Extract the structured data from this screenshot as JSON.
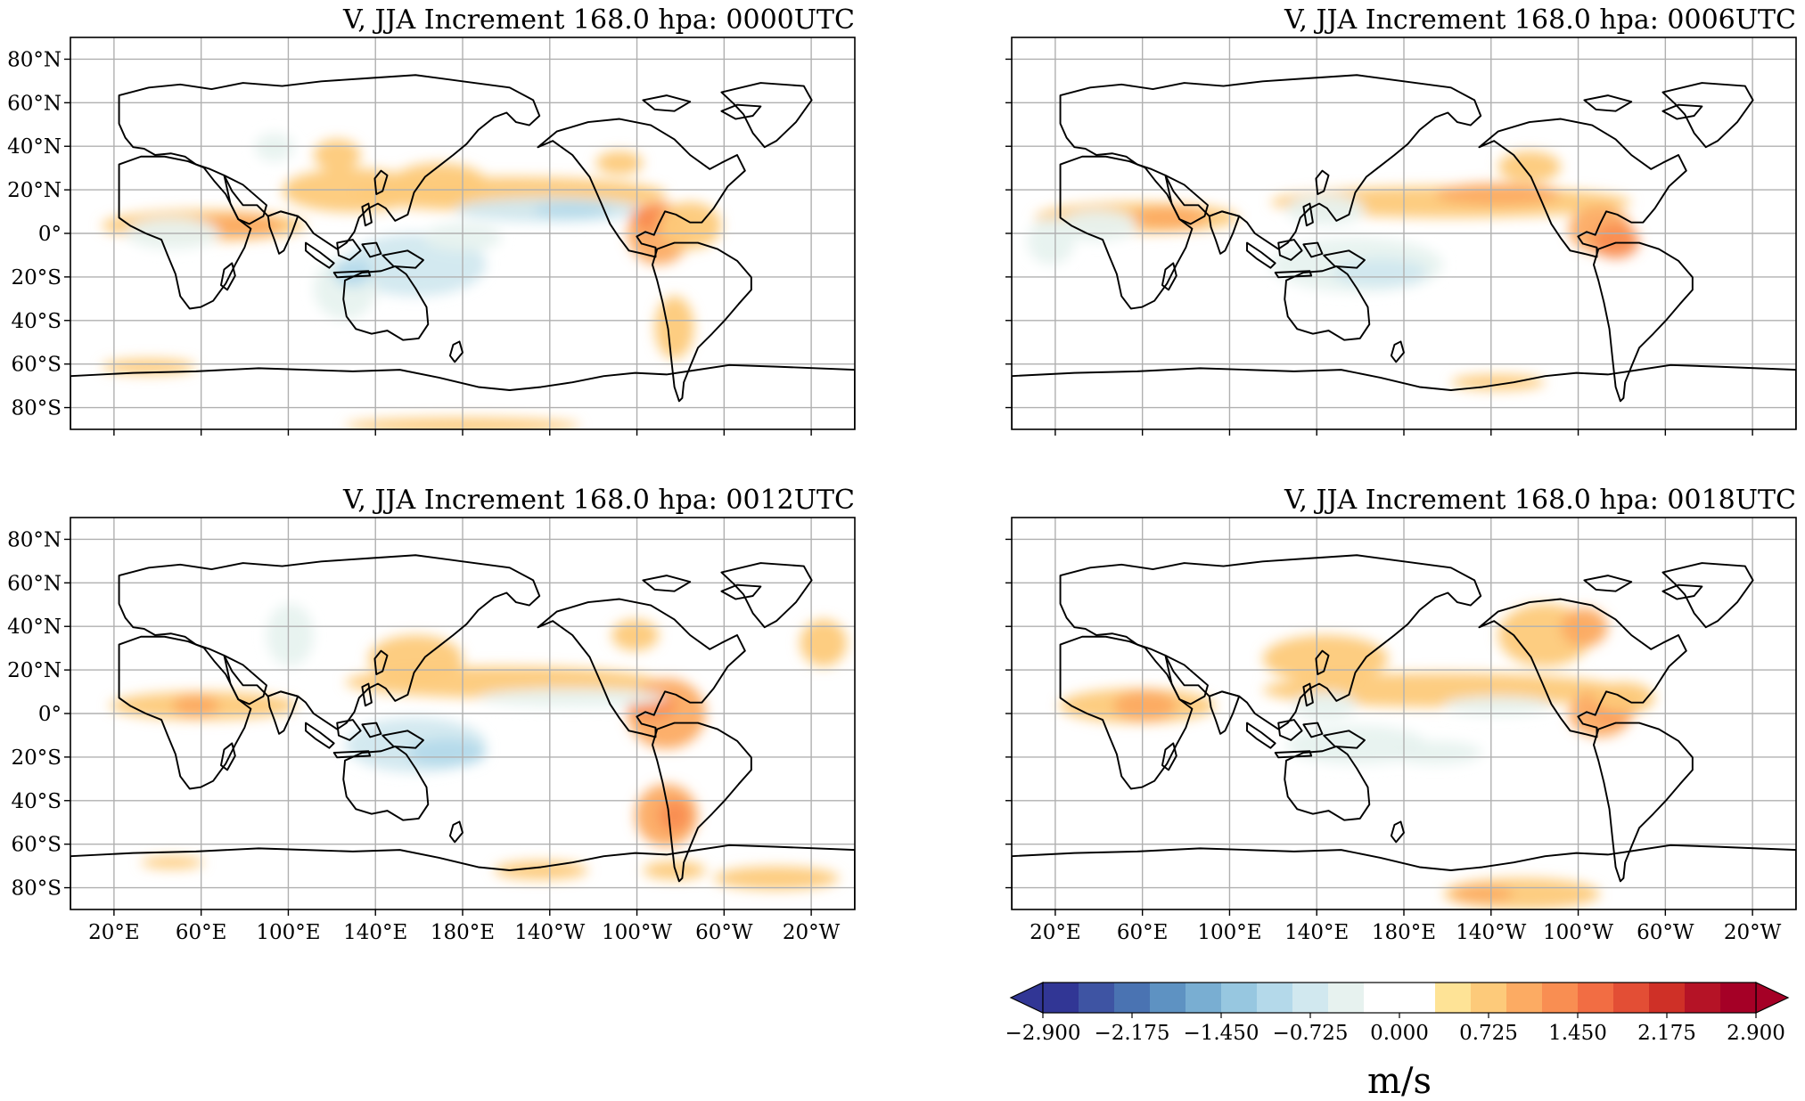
{
  "figure": {
    "panels": [
      {
        "title": "V, JJA Increment 168.0 hpa: 0000UTC"
      },
      {
        "title": "V, JJA Increment 168.0 hpa: 0006UTC"
      },
      {
        "title": "V, JJA Increment 168.0 hpa: 0012UTC"
      },
      {
        "title": "V, JJA Increment 168.0 hpa: 0018UTC"
      }
    ],
    "lat_ticks": [
      "80°N",
      "60°N",
      "40°N",
      "20°N",
      "0°",
      "20°S",
      "40°S",
      "60°S",
      "80°S"
    ],
    "lon_ticks": [
      "20°E",
      "60°E",
      "100°E",
      "140°E",
      "180°E",
      "140°W",
      "100°W",
      "60°W",
      "20°W"
    ],
    "colorbar": {
      "label": "m/s",
      "tick_labels": [
        "−2.900",
        "−2.175",
        "−1.450",
        "−0.725",
        "0.000",
        "0.725",
        "1.450",
        "2.175",
        "2.900"
      ],
      "colors": [
        "#313695",
        "#3e54a3",
        "#4a73b2",
        "#5e92c2",
        "#79aed2",
        "#97c7e0",
        "#b4d9ea",
        "#d1e8ef",
        "#e7f2ef",
        "#ffffff",
        "#ffffff",
        "#fee396",
        "#fdca7a",
        "#fcab63",
        "#f98e52",
        "#f26d43",
        "#e34e35",
        "#cf3027",
        "#b51326",
        "#a50026"
      ]
    }
  },
  "chart_data": [
    {
      "type": "heatmap",
      "title": "V, JJA Increment 168.0 hpa: 0000UTC",
      "variable": "V",
      "units": "m/s",
      "pressure_hpa": 168.0,
      "season": "JJA",
      "time": "0000UTC",
      "xlim": [
        0,
        360
      ],
      "ylim": [
        -90,
        90
      ],
      "central_longitude": 180,
      "features": [
        {
          "name": "tropical north Pacific band",
          "sign": "positive",
          "approx_max": 1.2
        },
        {
          "name": "equatorial east Pacific",
          "sign": "negative",
          "approx_min": -0.9
        },
        {
          "name": "Maritime Continent / north Australia",
          "sign": "negative",
          "approx_min": -1.8
        },
        {
          "name": "Indian Ocean equatorial",
          "sign": "positive",
          "approx_max": 1.0
        },
        {
          "name": "northern South America",
          "sign": "positive",
          "approx_max": 1.3
        }
      ]
    },
    {
      "type": "heatmap",
      "title": "V, JJA Increment 168.0 hpa: 0006UTC",
      "variable": "V",
      "units": "m/s",
      "pressure_hpa": 168.0,
      "season": "JJA",
      "time": "0006UTC",
      "xlim": [
        0,
        360
      ],
      "ylim": [
        -90,
        90
      ],
      "central_longitude": 180,
      "features": [
        {
          "name": "tropical north Pacific band",
          "sign": "positive",
          "approx_max": 1.2
        },
        {
          "name": "Maritime Continent / north Australia",
          "sign": "negative",
          "approx_min": -1.2
        },
        {
          "name": "Indian Ocean equatorial",
          "sign": "positive",
          "approx_max": 1.1
        },
        {
          "name": "northern South America",
          "sign": "positive",
          "approx_max": 1.3
        }
      ]
    },
    {
      "type": "heatmap",
      "title": "V, JJA Increment 168.0 hpa: 0012UTC",
      "variable": "V",
      "units": "m/s",
      "pressure_hpa": 168.0,
      "season": "JJA",
      "time": "0012UTC",
      "xlim": [
        0,
        360
      ],
      "ylim": [
        -90,
        90
      ],
      "central_longitude": 180,
      "features": [
        {
          "name": "tropical north Pacific band",
          "sign": "positive",
          "approx_max": 1.3
        },
        {
          "name": "Maritime Continent / north Australia",
          "sign": "negative",
          "approx_min": -1.6
        },
        {
          "name": "northern South America",
          "sign": "positive",
          "approx_max": 1.6
        },
        {
          "name": "Patagonia",
          "sign": "positive",
          "approx_max": 1.2
        }
      ]
    },
    {
      "type": "heatmap",
      "title": "V, JJA Increment 168.0 hpa: 0018UTC",
      "variable": "V",
      "units": "m/s",
      "pressure_hpa": 168.0,
      "season": "JJA",
      "time": "0018UTC",
      "xlim": [
        0,
        360
      ],
      "ylim": [
        -90,
        90
      ],
      "central_longitude": 180,
      "features": [
        {
          "name": "tropical north Pacific band",
          "sign": "positive",
          "approx_max": 1.2
        },
        {
          "name": "Mexico / southern USA",
          "sign": "positive",
          "approx_max": 1.4
        },
        {
          "name": "Arabian Sea",
          "sign": "positive",
          "approx_max": 1.3
        },
        {
          "name": "Maritime Continent",
          "sign": "negative",
          "approx_min": -0.9
        }
      ]
    }
  ]
}
